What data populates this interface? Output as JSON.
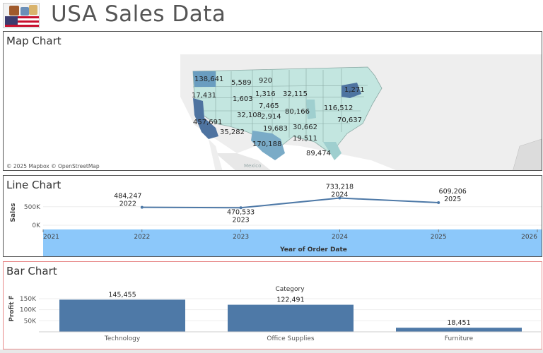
{
  "header": {
    "title": "USA Sales Data",
    "logo_icon": "usa-flag-logo"
  },
  "map": {
    "title": "Map Chart",
    "attribution": "© 2025 Mapbox © OpenStreetMap",
    "place_label": "Mexico",
    "state_labels": [
      {
        "state": "WA",
        "value": "138,641"
      },
      {
        "state": "MT",
        "value": "5,589"
      },
      {
        "state": "ND",
        "value": "920"
      },
      {
        "state": "OR",
        "value": "17,431"
      },
      {
        "state": "WY",
        "value": "1,603"
      },
      {
        "state": "SD",
        "value": "1,316"
      },
      {
        "state": "WI",
        "value": "32,115"
      },
      {
        "state": "VT",
        "value": "1,271"
      },
      {
        "state": "NE",
        "value": "7,465"
      },
      {
        "state": "CO",
        "value": "32,108"
      },
      {
        "state": "KS",
        "value": "2,914"
      },
      {
        "state": "IL",
        "value": "80,166"
      },
      {
        "state": "NY",
        "value": "116,512"
      },
      {
        "state": "VA",
        "value": "70,637"
      },
      {
        "state": "CA",
        "value": "457,691"
      },
      {
        "state": "AZ",
        "value": "35,282"
      },
      {
        "state": "OK",
        "value": "19,683"
      },
      {
        "state": "NC",
        "value": "30,662"
      },
      {
        "state": "GA",
        "value": "19,511"
      },
      {
        "state": "TX",
        "value": "170,188"
      },
      {
        "state": "FL",
        "value": "89,474"
      }
    ]
  },
  "line": {
    "title": "Line Chart"
  },
  "bar": {
    "title": "Bar Chart"
  },
  "colors": {
    "primary": "#4e79a7",
    "band": "#8cc8fa",
    "map_light": "#c3e6e0",
    "map_dark": "#4e73a0"
  },
  "chart_data": [
    {
      "type": "line",
      "x": [
        "2022",
        "2023",
        "2024",
        "2025"
      ],
      "series": [
        {
          "values": [
            484247,
            470533,
            733218,
            609206
          ]
        }
      ],
      "data_labels": [
        "484,247",
        "470,533",
        "733,218",
        "609,206"
      ],
      "xlabel": "Year of Order Date",
      "ylabel": "Sales",
      "x_ticks": [
        "2021",
        "2022",
        "2023",
        "2024",
        "2025",
        "2026"
      ],
      "y_ticks": [
        "500K",
        "0K"
      ],
      "ylim": [
        0,
        800000
      ]
    },
    {
      "type": "bar",
      "header": "Category",
      "categories": [
        "Technology",
        "Office Supplies",
        "Furniture"
      ],
      "values": [
        145455,
        122491,
        18451
      ],
      "data_labels": [
        "145,455",
        "122,491",
        "18,451"
      ],
      "ylabel": "Profit F",
      "y_ticks": [
        "150K",
        "100K",
        "50K"
      ],
      "ylim": [
        0,
        150000
      ]
    }
  ]
}
